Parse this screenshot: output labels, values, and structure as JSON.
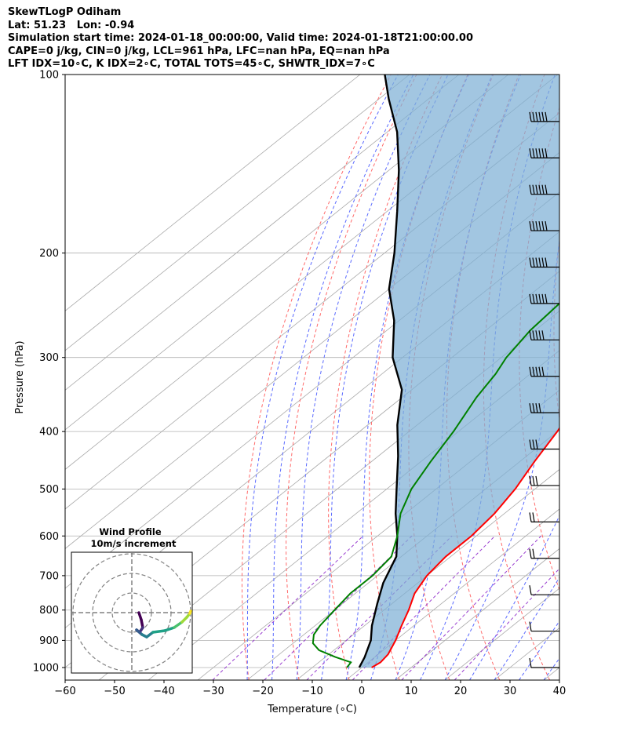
{
  "header": {
    "line1": "SkewTLogP Odiham",
    "line2": "Lat: 51.23   Lon: -0.94",
    "line3": "Simulation start time: 2024-01-18_00:00:00, Valid time: 2024-01-18T21:00:00.00",
    "line4": "CAPE=0 j/kg, CIN=0 j/kg, LCL=961 hPa, LFC=nan hPa, EQ=nan hPa",
    "line5": "LFT IDX=10∘C, K IDX=2∘C, TOTAL TOTS=45∘C, SHWTR_IDX=7∘C"
  },
  "inset": {
    "title": "Wind Profile",
    "subtitle": "10m/s increment"
  },
  "chart_data": {
    "type": "line",
    "title": "SkewTLogP Odiham",
    "xlabel": "Temperature (∘C)",
    "ylabel": "Pressure (hPa)",
    "xlim": [
      -60,
      40
    ],
    "ylim": [
      1050,
      100
    ],
    "x_ticks": [
      -60,
      -50,
      -40,
      -30,
      -20,
      -10,
      0,
      10,
      20,
      30,
      40
    ],
    "x_tick_labels": [
      "−60",
      "−50",
      "−40",
      "−30",
      "−20",
      "−10",
      "0",
      "10",
      "20",
      "30",
      "40"
    ],
    "y_ticks": [
      1000,
      900,
      800,
      700,
      600,
      500,
      400,
      300,
      200,
      100
    ],
    "y_scale": "log",
    "grid": true,
    "colors": {
      "temperature": "#ff0000",
      "dewpoint": "#008000",
      "parcel": "#000000",
      "cape_fill": "#7eb0d5",
      "dry_adiabats": "#ff6a6a",
      "moist_adiabats": "#5a6aff",
      "mixing_ratio": "#9a3fd0",
      "isotherms": "#a0a0a0"
    },
    "series": [
      {
        "key": "temperature",
        "points": [
          [
            2,
            1000
          ],
          [
            2.5,
            980
          ],
          [
            2,
            950
          ],
          [
            0,
            900
          ],
          [
            -2.5,
            850
          ],
          [
            -5,
            800
          ],
          [
            -8,
            750
          ],
          [
            -10,
            700
          ],
          [
            -11,
            650
          ],
          [
            -11,
            600
          ],
          [
            -12,
            550
          ],
          [
            -14,
            500
          ],
          [
            -17,
            450
          ],
          [
            -20,
            400
          ],
          [
            -24,
            350
          ],
          [
            -27,
            320
          ],
          [
            -30,
            300
          ],
          [
            -35,
            270
          ],
          [
            -40,
            250
          ],
          [
            -45,
            225
          ],
          [
            -50,
            200
          ],
          [
            -56,
            175
          ],
          [
            -60,
            160
          ],
          [
            -63,
            150
          ],
          [
            -66,
            135
          ],
          [
            -70,
            120
          ],
          [
            -73,
            100
          ]
        ]
      },
      {
        "key": "dewpoint",
        "points": [
          [
            -3,
            1000
          ],
          [
            -3.5,
            980
          ],
          [
            -8,
            960
          ],
          [
            -13,
            935
          ],
          [
            -16,
            910
          ],
          [
            -18,
            880
          ],
          [
            -19,
            850
          ],
          [
            -20,
            800
          ],
          [
            -21,
            750
          ],
          [
            -21,
            700
          ],
          [
            -22,
            650
          ],
          [
            -26,
            600
          ],
          [
            -31,
            550
          ],
          [
            -35,
            500
          ],
          [
            -38,
            450
          ],
          [
            -41,
            400
          ],
          [
            -45,
            350
          ],
          [
            -47,
            320
          ],
          [
            -49,
            300
          ],
          [
            -51,
            270
          ],
          [
            -52,
            240
          ],
          [
            -53,
            220
          ],
          [
            -54,
            200
          ],
          [
            -58,
            190
          ],
          [
            -62,
            180
          ],
          [
            -67,
            165
          ],
          [
            -70,
            150
          ],
          [
            -74,
            135
          ],
          [
            -78,
            120
          ],
          [
            -82,
            100
          ]
        ]
      },
      {
        "key": "parcel",
        "points": [
          [
            -0.5,
            1000
          ],
          [
            -2,
            961
          ],
          [
            -5,
            900
          ],
          [
            -8.5,
            850
          ],
          [
            -13,
            780
          ],
          [
            -17,
            720
          ],
          [
            -21,
            650
          ],
          [
            -26,
            600
          ],
          [
            -32,
            550
          ],
          [
            -38,
            500
          ],
          [
            -46,
            440
          ],
          [
            -54,
            390
          ],
          [
            -62,
            340
          ],
          [
            -72,
            300
          ],
          [
            -81,
            260
          ],
          [
            -90,
            230
          ],
          [
            -98,
            200
          ],
          [
            -108,
            170
          ],
          [
            -118,
            145
          ],
          [
            -128,
            125
          ],
          [
            -138,
            110
          ],
          [
            -145,
            100
          ]
        ]
      }
    ],
    "wind_barbs_speed_kt": [
      10,
      10,
      15,
      20,
      25,
      30,
      35,
      45,
      50,
      55,
      60,
      60,
      60,
      60,
      60,
      60
    ]
  }
}
